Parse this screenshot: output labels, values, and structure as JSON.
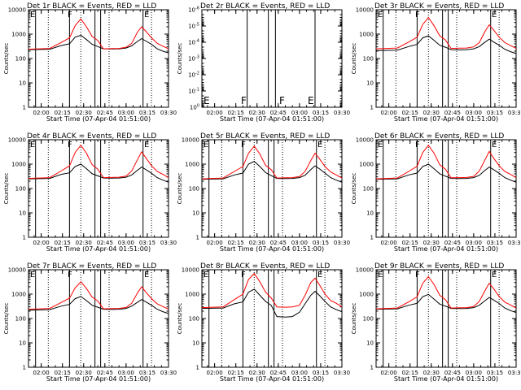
{
  "figure": {
    "x_ticks": [
      "02:00",
      "02:15",
      "02:30",
      "02:45",
      "03:00",
      "03:15",
      "03:30"
    ],
    "y_ticks_log": [
      "1",
      "10",
      "100",
      "1000",
      "10000"
    ],
    "y_ticks_small": [
      "10^0",
      "10^-1",
      "10^-2",
      "10^-3",
      "10^-4",
      "10^-5",
      "10^-6"
    ],
    "ylabel": "Counts/sec",
    "xlabel": "Start Time (07-Apr-04 01:51:00)",
    "colors": {
      "events": "#000000",
      "lld": "#ff0000",
      "axis": "#000000"
    }
  },
  "chart_data": [
    {
      "type": "line",
      "title": "Det 1r BLACK = Events, RED = LLD",
      "header_letters": [
        "E",
        "F",
        "E"
      ],
      "yscale": "log",
      "ylim": [
        1,
        10000
      ],
      "xlim": [
        "01:51",
        "03:30"
      ],
      "x": [
        "01:51",
        "02:06",
        "02:14",
        "02:20",
        "02:24",
        "02:28",
        "02:32",
        "02:36",
        "02:40",
        "02:44",
        "02:50",
        "02:55",
        "03:00",
        "03:04",
        "03:08",
        "03:11",
        "03:14",
        "03:18",
        "03:22",
        "03:26",
        "03:30"
      ],
      "series": [
        {
          "name": "Events",
          "values": [
            230,
            240,
            340,
            400,
            750,
            900,
            600,
            380,
            310,
            250,
            245,
            250,
            270,
            330,
            500,
            650,
            520,
            380,
            250,
            200,
            170
          ]
        },
        {
          "name": "LLD",
          "values": [
            240,
            260,
            450,
            700,
            2200,
            4200,
            2000,
            800,
            550,
            250,
            255,
            260,
            290,
            420,
            1200,
            2000,
            1300,
            700,
            420,
            320,
            250
          ]
        }
      ],
      "vlines": [
        "01:56",
        "02:20",
        "02:38",
        "02:42",
        "03:12"
      ],
      "dotted_vlines": [
        "02:05",
        "02:28",
        "02:48",
        "03:18"
      ]
    },
    {
      "type": "line",
      "title": "Det 2r BLACK = Events, RED = LLD",
      "header_letters": [
        "E",
        "F",
        "F",
        "E"
      ],
      "yscale": "log",
      "ylim": [
        1,
        1e-06
      ],
      "xlim": [
        "01:51",
        "03:30"
      ],
      "x": [],
      "series": [],
      "vlines": [
        "02:23",
        "02:38",
        "02:43",
        "03:11"
      ],
      "dotted_vlines": []
    },
    {
      "type": "line",
      "title": "Det 3r BLACK = Events, RED = LLD",
      "header_letters": [
        "E",
        "F",
        "E"
      ],
      "yscale": "log",
      "ylim": [
        1,
        10000
      ],
      "xlim": [
        "01:51",
        "03:30"
      ],
      "x": [
        "01:51",
        "02:06",
        "02:14",
        "02:20",
        "02:24",
        "02:28",
        "02:32",
        "02:36",
        "02:40",
        "02:44",
        "02:50",
        "02:55",
        "03:00",
        "03:04",
        "03:08",
        "03:11",
        "03:14",
        "03:18",
        "03:22",
        "03:26",
        "03:30"
      ],
      "series": [
        {
          "name": "Events",
          "values": [
            210,
            220,
            310,
            380,
            700,
            850,
            560,
            350,
            290,
            230,
            225,
            230,
            250,
            310,
            470,
            620,
            480,
            350,
            240,
            190,
            160
          ]
        },
        {
          "name": "LLD",
          "values": [
            250,
            270,
            470,
            750,
            2500,
            4800,
            2200,
            850,
            580,
            260,
            265,
            270,
            300,
            450,
            1300,
            2400,
            1500,
            750,
            450,
            340,
            260
          ]
        }
      ],
      "vlines": [
        "01:56",
        "02:20",
        "02:38",
        "02:42",
        "03:12"
      ],
      "dotted_vlines": [
        "02:05",
        "02:28",
        "02:48",
        "03:18"
      ]
    },
    {
      "type": "line",
      "title": "Det 4r BLACK = Events, RED = LLD",
      "header_letters": [
        "E",
        "F",
        "E"
      ],
      "yscale": "log",
      "ylim": [
        1,
        10000
      ],
      "xlim": [
        "01:51",
        "03:30"
      ],
      "x": [
        "01:51",
        "02:06",
        "02:14",
        "02:20",
        "02:24",
        "02:28",
        "02:32",
        "02:36",
        "02:40",
        "02:44",
        "02:50",
        "02:55",
        "03:00",
        "03:04",
        "03:08",
        "03:11",
        "03:14",
        "03:18",
        "03:22",
        "03:26",
        "03:30"
      ],
      "series": [
        {
          "name": "Events",
          "values": [
            250,
            260,
            380,
            440,
            800,
            1000,
            650,
            400,
            330,
            270,
            265,
            270,
            290,
            360,
            560,
            760,
            600,
            420,
            280,
            220,
            180
          ]
        },
        {
          "name": "LLD",
          "values": [
            260,
            280,
            520,
            850,
            3000,
            6000,
            2800,
            950,
            620,
            280,
            285,
            290,
            320,
            520,
            1500,
            3200,
            1800,
            850,
            500,
            380,
            280
          ]
        }
      ],
      "vlines": [
        "01:56",
        "02:20",
        "02:38",
        "02:42",
        "03:12"
      ],
      "dotted_vlines": [
        "02:05",
        "02:28",
        "02:48",
        "03:18"
      ]
    },
    {
      "type": "line",
      "title": "Det 5r BLACK = Events, RED = LLD",
      "header_letters": [
        "E",
        "F",
        "E"
      ],
      "yscale": "log",
      "ylim": [
        1,
        10000
      ],
      "xlim": [
        "01:51",
        "03:30"
      ],
      "x": [
        "01:51",
        "02:06",
        "02:14",
        "02:20",
        "02:24",
        "02:28",
        "02:32",
        "02:36",
        "02:40",
        "02:44",
        "02:50",
        "02:55",
        "03:00",
        "03:04",
        "03:08",
        "03:11",
        "03:14",
        "03:18",
        "03:22",
        "03:26",
        "03:30"
      ],
      "series": [
        {
          "name": "Events",
          "values": [
            240,
            250,
            360,
            430,
            1000,
            1300,
            800,
            450,
            340,
            260,
            255,
            260,
            280,
            350,
            600,
            850,
            650,
            430,
            280,
            220,
            180
          ]
        },
        {
          "name": "LLD",
          "values": [
            250,
            270,
            500,
            800,
            2800,
            5500,
            2600,
            900,
            600,
            270,
            275,
            280,
            310,
            500,
            1400,
            2800,
            1700,
            800,
            480,
            360,
            270
          ]
        }
      ],
      "vlines": [
        "01:56",
        "02:20",
        "02:38",
        "02:42",
        "03:12"
      ],
      "dotted_vlines": [
        "02:05",
        "02:28",
        "02:48",
        "03:18"
      ]
    },
    {
      "type": "line",
      "title": "Det 6r BLACK = Events, RED = LLD",
      "header_letters": [
        "E",
        "F",
        "E"
      ],
      "yscale": "log",
      "ylim": [
        1,
        10000
      ],
      "xlim": [
        "01:51",
        "03:30"
      ],
      "x": [
        "01:51",
        "02:06",
        "02:14",
        "02:20",
        "02:24",
        "02:28",
        "02:32",
        "02:36",
        "02:40",
        "02:44",
        "02:50",
        "02:55",
        "03:00",
        "03:04",
        "03:08",
        "03:11",
        "03:14",
        "03:18",
        "03:22",
        "03:26",
        "03:30"
      ],
      "series": [
        {
          "name": "Events",
          "values": [
            240,
            250,
            360,
            430,
            800,
            1000,
            640,
            400,
            320,
            260,
            255,
            260,
            280,
            350,
            560,
            760,
            600,
            420,
            280,
            220,
            180
          ]
        },
        {
          "name": "LLD",
          "values": [
            250,
            270,
            500,
            820,
            3000,
            6000,
            2800,
            950,
            620,
            275,
            280,
            285,
            315,
            520,
            1500,
            3300,
            1800,
            850,
            500,
            380,
            280
          ]
        }
      ],
      "vlines": [
        "01:56",
        "02:20",
        "02:38",
        "02:42",
        "03:12"
      ],
      "dotted_vlines": [
        "02:05",
        "02:28",
        "02:48",
        "03:18"
      ]
    },
    {
      "type": "line",
      "title": "Det 7r BLACK = Events, RED = LLD",
      "header_letters": [
        "E",
        "F",
        "E"
      ],
      "yscale": "log",
      "ylim": [
        1,
        10000
      ],
      "xlim": [
        "01:51",
        "03:30"
      ],
      "x": [
        "01:51",
        "02:06",
        "02:14",
        "02:20",
        "02:24",
        "02:28",
        "02:32",
        "02:36",
        "02:40",
        "02:44",
        "02:50",
        "02:55",
        "03:00",
        "03:04",
        "03:08",
        "03:11",
        "03:14",
        "03:18",
        "03:22",
        "03:26",
        "03:30"
      ],
      "series": [
        {
          "name": "Events",
          "values": [
            220,
            230,
            320,
            380,
            650,
            800,
            540,
            350,
            290,
            240,
            235,
            240,
            260,
            320,
            460,
            600,
            480,
            350,
            240,
            190,
            160
          ]
        },
        {
          "name": "LLD",
          "values": [
            240,
            260,
            450,
            680,
            1800,
            3200,
            1700,
            750,
            520,
            250,
            255,
            260,
            285,
            420,
            1100,
            2000,
            1200,
            650,
            400,
            310,
            240
          ]
        }
      ],
      "vlines": [
        "01:56",
        "02:20",
        "02:38",
        "02:42",
        "03:12"
      ],
      "dotted_vlines": [
        "02:05",
        "02:28",
        "02:48",
        "03:18"
      ]
    },
    {
      "type": "line",
      "title": "Det 8r BLACK = Events, RED = LLD",
      "header_letters": [
        "E",
        "F",
        "E"
      ],
      "yscale": "log",
      "ylim": [
        1,
        10000
      ],
      "xlim": [
        "01:51",
        "03:30"
      ],
      "x": [
        "01:51",
        "02:06",
        "02:14",
        "02:20",
        "02:24",
        "02:28",
        "02:32",
        "02:36",
        "02:40",
        "02:44",
        "02:50",
        "02:55",
        "03:00",
        "03:04",
        "03:08",
        "03:11",
        "03:14",
        "03:18",
        "03:22",
        "03:26",
        "03:30"
      ],
      "series": [
        {
          "name": "Events",
          "values": [
            260,
            270,
            400,
            480,
            1200,
            1600,
            900,
            500,
            350,
            120,
            115,
            120,
            180,
            400,
            900,
            1300,
            900,
            500,
            300,
            230,
            190
          ]
        },
        {
          "name": "LLD",
          "values": [
            280,
            300,
            600,
            1000,
            4000,
            7000,
            3200,
            1200,
            700,
            300,
            290,
            300,
            350,
            900,
            3000,
            4500,
            2500,
            1000,
            550,
            420,
            300
          ]
        }
      ],
      "vlines": [
        "01:56",
        "02:20",
        "02:38",
        "02:42",
        "03:12"
      ],
      "dotted_vlines": [
        "02:05",
        "02:28",
        "02:48",
        "03:18"
      ]
    },
    {
      "type": "line",
      "title": "Det 9r BLACK = Events, RED = LLD",
      "header_letters": [
        "E",
        "F",
        "E"
      ],
      "yscale": "log",
      "ylim": [
        1,
        10000
      ],
      "xlim": [
        "01:51",
        "03:30"
      ],
      "x": [
        "01:51",
        "02:06",
        "02:14",
        "02:20",
        "02:24",
        "02:28",
        "02:32",
        "02:36",
        "02:40",
        "02:44",
        "02:50",
        "02:55",
        "03:00",
        "03:04",
        "03:08",
        "03:11",
        "03:14",
        "03:18",
        "03:22",
        "03:26",
        "03:30"
      ],
      "series": [
        {
          "name": "Events",
          "values": [
            240,
            250,
            350,
            420,
            780,
            980,
            620,
            390,
            320,
            260,
            255,
            260,
            280,
            350,
            540,
            730,
            580,
            410,
            270,
            210,
            175
          ]
        },
        {
          "name": "LLD",
          "values": [
            250,
            270,
            480,
            780,
            2800,
            5200,
            2500,
            900,
            600,
            270,
            275,
            280,
            310,
            500,
            1400,
            2800,
            1700,
            800,
            470,
            360,
            270
          ]
        }
      ],
      "vlines": [
        "01:56",
        "02:20",
        "02:38",
        "02:42",
        "03:12"
      ],
      "dotted_vlines": [
        "02:05",
        "02:28",
        "02:48",
        "03:18"
      ]
    }
  ]
}
